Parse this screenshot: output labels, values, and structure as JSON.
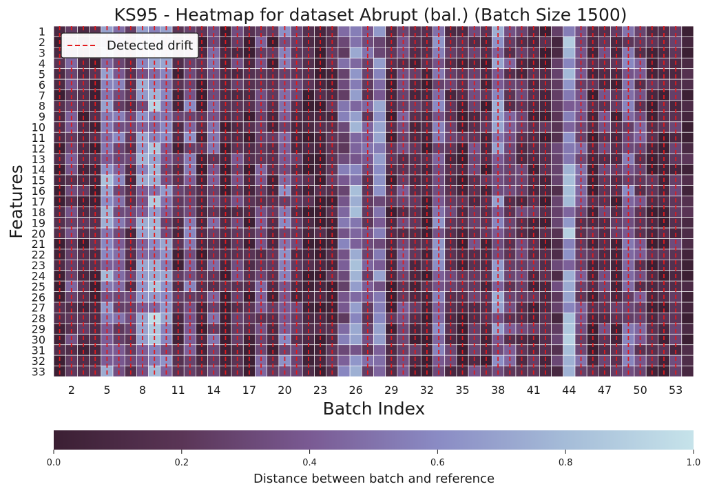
{
  "chart_data": {
    "type": "heatmap",
    "title": "KS95 - Heatmap for dataset Abrupt (bal.) (Batch Size 1500)",
    "xlabel": "Batch Index",
    "ylabel": "Features",
    "x_ticks": [
      2,
      5,
      8,
      11,
      14,
      17,
      20,
      23,
      26,
      29,
      32,
      35,
      38,
      41,
      44,
      47,
      50,
      53
    ],
    "y_ticks": [
      1,
      2,
      3,
      4,
      5,
      6,
      7,
      8,
      9,
      10,
      11,
      12,
      13,
      14,
      15,
      16,
      17,
      18,
      19,
      20,
      21,
      22,
      23,
      24,
      25,
      26,
      27,
      28,
      29,
      30,
      31,
      32,
      33
    ],
    "n_batches": 54,
    "n_features": 33,
    "batch_values": [
      0.05,
      0.3,
      0.12,
      0.08,
      0.6,
      0.4,
      0.2,
      0.55,
      0.7,
      0.5,
      0.15,
      0.45,
      0.1,
      0.35,
      0.05,
      0.25,
      0.08,
      0.3,
      0.12,
      0.45,
      0.2,
      0.1,
      0.05,
      0.15,
      0.4,
      0.6,
      0.35,
      0.5,
      0.1,
      0.3,
      0.15,
      0.08,
      0.45,
      0.2,
      0.1,
      0.25,
      0.12,
      0.55,
      0.3,
      0.2,
      0.15,
      0.1,
      0.2,
      0.65,
      0.35,
      0.1,
      0.25,
      0.15,
      0.4,
      0.3,
      0.12,
      0.08,
      0.2,
      0.1
    ],
    "drift_batches": [
      1.5,
      2.5,
      3.5,
      4.5,
      5.5,
      6.5,
      7.5,
      8.5,
      9.5,
      10.5,
      11.5,
      12.5,
      13.5,
      14.5,
      15.5,
      16.5,
      17.5,
      18.5,
      19.5,
      20.5,
      21.5,
      22.5,
      23.5,
      24.5,
      27.5,
      29.5,
      30.5,
      31.5,
      32.5,
      33.5,
      34.5,
      35.5,
      36.5,
      37.5,
      38.5,
      39.5,
      40.5,
      41.5,
      42.5,
      45.5,
      46.5,
      47.5,
      48.5,
      49.5,
      50.5,
      51.5,
      52.5,
      53.5
    ],
    "legend": {
      "label": "Detected drift",
      "color": "#e31a1c",
      "placement": "upper-left"
    },
    "colorbar": {
      "label": "Distance between batch and reference",
      "ticks": [
        "0.0",
        "0.2",
        "0.4",
        "0.6",
        "0.8",
        "1.0"
      ],
      "range": [
        0,
        1
      ],
      "orientation": "horizontal"
    },
    "colormap": [
      "#3b1f33",
      "#5a3556",
      "#7a5a93",
      "#8a8bc4",
      "#a5bcd8",
      "#c6e3ea"
    ],
    "grid": "white cell borders"
  }
}
